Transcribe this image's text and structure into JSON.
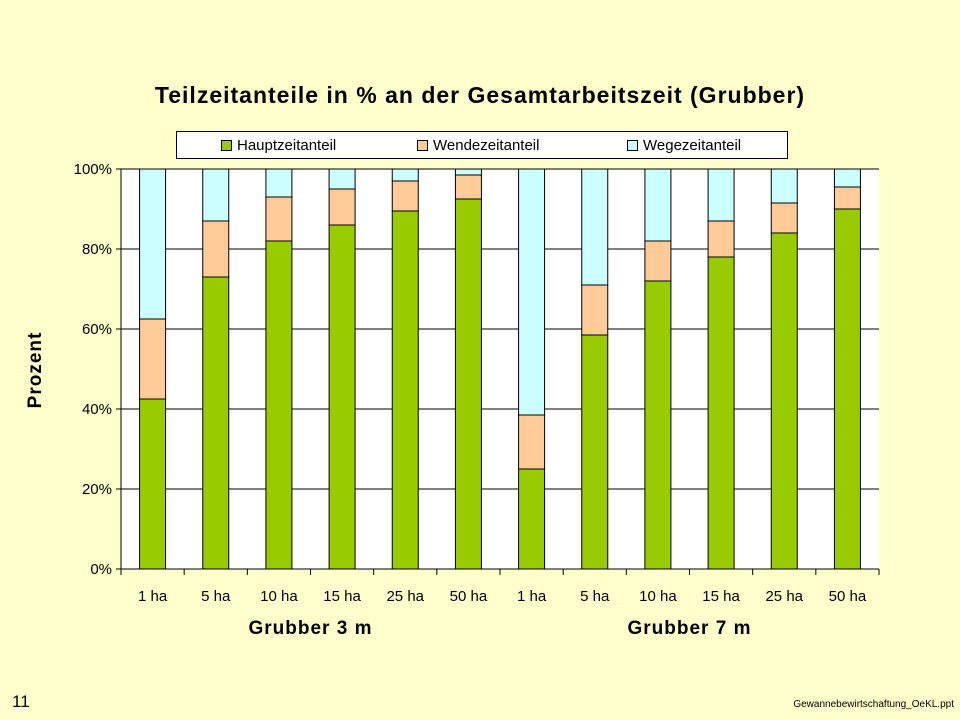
{
  "colors": {
    "background": "#ffffcc",
    "plot_background": "#ffffff",
    "hauptzeit": "#99cc00",
    "wendezeit": "#ffcc99",
    "wegezeit": "#ccffff"
  },
  "page_number": "11",
  "file_name": "Gewannebewirtschaftung_OeKL.ppt",
  "chart_data": {
    "type": "bar",
    "stacked": true,
    "title": "Teilzeitanteile in % an der Gesamtarbeitszeit (Grubber)",
    "ylabel": "Prozent",
    "ylim": [
      0,
      100
    ],
    "y_ticks": [
      "0%",
      "20%",
      "40%",
      "60%",
      "80%",
      "100%"
    ],
    "y_tick_values": [
      0,
      20,
      40,
      60,
      80,
      100
    ],
    "grid": true,
    "legend_position": "top",
    "categories": [
      "1 ha",
      "5 ha",
      "10 ha",
      "15 ha",
      "25 ha",
      "50 ha",
      "1 ha",
      "5 ha",
      "10 ha",
      "15 ha",
      "25 ha",
      "50 ha"
    ],
    "groups": [
      {
        "label": "Grubber 3 m",
        "size": 6
      },
      {
        "label": "Grubber 7 m",
        "size": 6
      }
    ],
    "series": [
      {
        "name": "Hauptzeitanteil",
        "color": "#99cc00",
        "values": [
          42.5,
          73,
          82,
          86,
          89.5,
          92.5,
          25,
          58.5,
          72,
          78,
          84,
          90
        ]
      },
      {
        "name": "Wendezeitanteil",
        "color": "#ffcc99",
        "values": [
          20,
          14,
          11,
          9,
          7.5,
          6,
          13.5,
          12.5,
          10,
          9,
          7.5,
          5.5
        ]
      },
      {
        "name": "Wegezeitanteil",
        "color": "#ccffff",
        "values": [
          37.5,
          13,
          7,
          5,
          3,
          1.5,
          61.5,
          29,
          18,
          13,
          8.5,
          4.5
        ]
      }
    ]
  }
}
